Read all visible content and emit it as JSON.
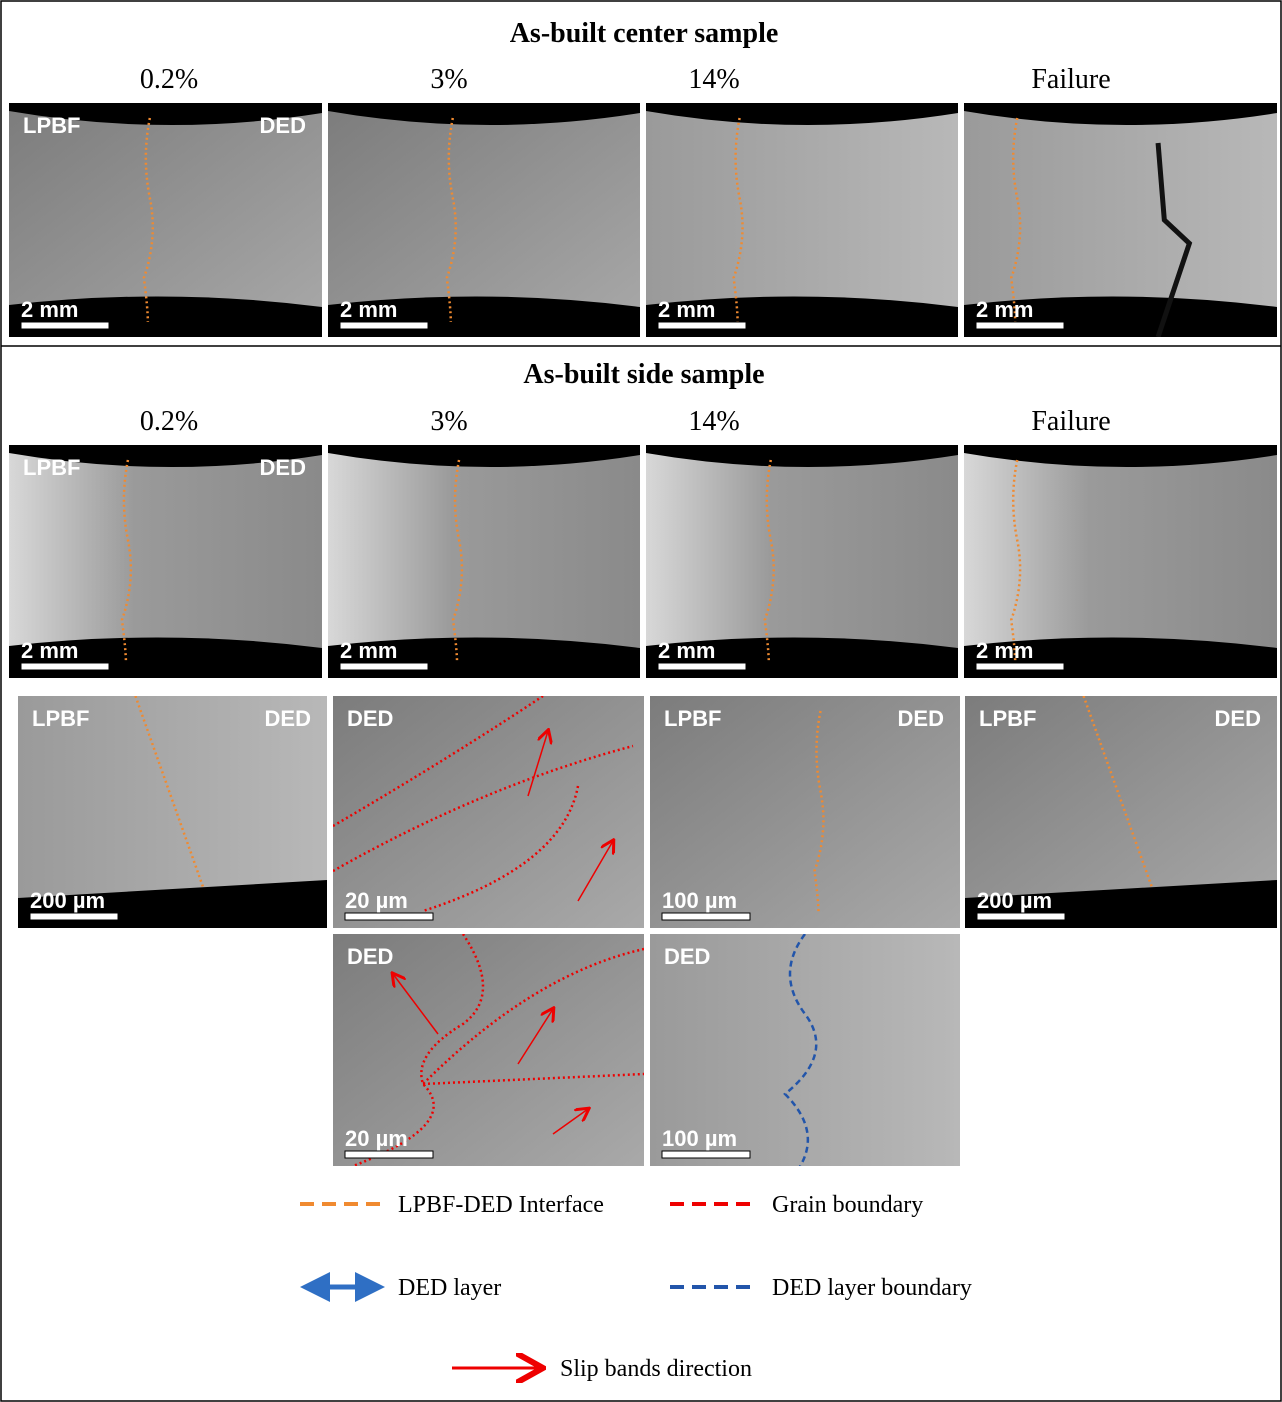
{
  "sections": [
    {
      "title": "As-built center sample",
      "columns": [
        "0.2%",
        "3%",
        "14%",
        "Failure"
      ]
    },
    {
      "title": "As-built side sample",
      "columns": [
        "0.2%",
        "3%",
        "14%",
        "Failure"
      ]
    }
  ],
  "panels": [
    {
      "labels": [
        "LPBF",
        "DED"
      ],
      "scale": "2 mm"
    },
    {
      "scale": "2 mm"
    },
    {
      "scale": "2 mm"
    },
    {
      "scale": "2 mm"
    },
    {
      "labels": [
        "LPBF",
        "DED"
      ],
      "scale": "2 mm"
    },
    {
      "scale": "2 mm"
    },
    {
      "scale": "2 mm"
    },
    {
      "scale": "2 mm"
    },
    {
      "labels": [
        "LPBF",
        "DED"
      ],
      "scale": "200 µm"
    },
    {
      "labels": [
        "DED"
      ],
      "scale": "20 µm"
    },
    {
      "labels": [
        "LPBF",
        "DED"
      ],
      "scale": "100 µm"
    },
    {
      "labels": [
        "LPBF",
        "DED"
      ],
      "scale": "200 µm"
    },
    {
      "labels": [
        "DED"
      ],
      "scale": "20 µm"
    },
    {
      "labels": [
        "DED"
      ],
      "scale": "100 µm"
    }
  ],
  "legend": [
    "LPBF-DED Interface",
    "Grain boundary",
    "DED layer",
    "DED layer boundary",
    "Slip bands direction"
  ]
}
